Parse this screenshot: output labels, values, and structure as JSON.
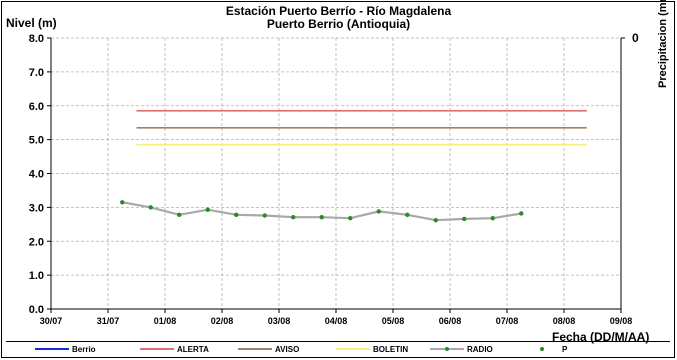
{
  "chart_data": {
    "type": "line",
    "title": "Estación Puerto Berrío - Río Magdalena",
    "subtitle": "Puerto Berrio (Antioquia)",
    "ylabel": "Nivel (m)",
    "y2label": "Precipitacion (mm)",
    "y2_top_tick": "0",
    "xlabel": "Fecha (DD/M/AA)",
    "ylim": [
      0,
      8
    ],
    "xlim": [
      0,
      10
    ],
    "yticks": [
      "0.0",
      "1.0",
      "2.0",
      "3.0",
      "4.0",
      "5.0",
      "6.0",
      "7.0",
      "8.0"
    ],
    "xticks": [
      "30/07",
      "31/07",
      "01/08",
      "02/08",
      "03/08",
      "04/08",
      "05/08",
      "06/08",
      "07/08",
      "08/08",
      "09/08"
    ],
    "grid": true,
    "legend_position": "bottom",
    "thresholds": [
      {
        "name": "ALERTA",
        "value": 5.85,
        "x": [
          1.5,
          9.4
        ],
        "color": "#e07070"
      },
      {
        "name": "AVISO",
        "value": 5.35,
        "x": [
          1.5,
          9.4
        ],
        "color": "#a08060"
      },
      {
        "name": "BOLETIN",
        "value": 4.85,
        "x": [
          1.5,
          9.4
        ],
        "color": "#f5f080"
      }
    ],
    "series": [
      {
        "name": "RADIO",
        "color": "#a8a8a8",
        "marker_color": "#2a8a2a",
        "x": [
          1.25,
          1.75,
          2.25,
          2.75,
          3.25,
          3.75,
          4.25,
          4.75,
          5.25,
          5.75,
          6.25,
          6.75,
          7.25,
          7.75,
          8.25
        ],
        "y": [
          3.15,
          3.0,
          2.78,
          2.93,
          2.78,
          2.76,
          2.71,
          2.71,
          2.68,
          2.88,
          2.78,
          2.62,
          2.66,
          2.68,
          2.82
        ]
      }
    ],
    "legend": [
      {
        "name": "Berrio",
        "color": "#1a2ad8",
        "style": "line"
      },
      {
        "name": "ALERTA",
        "color": "#e07070",
        "style": "line"
      },
      {
        "name": "AVISO",
        "color": "#a08060",
        "style": "line"
      },
      {
        "name": "BOLETIN",
        "color": "#f5f080",
        "style": "line"
      },
      {
        "name": "RADIO",
        "color": "#a8a8a8",
        "style": "line-marker",
        "marker_color": "#2a8a2a"
      },
      {
        "name": "P",
        "color": "#2a8a2a",
        "style": "marker"
      }
    ]
  }
}
